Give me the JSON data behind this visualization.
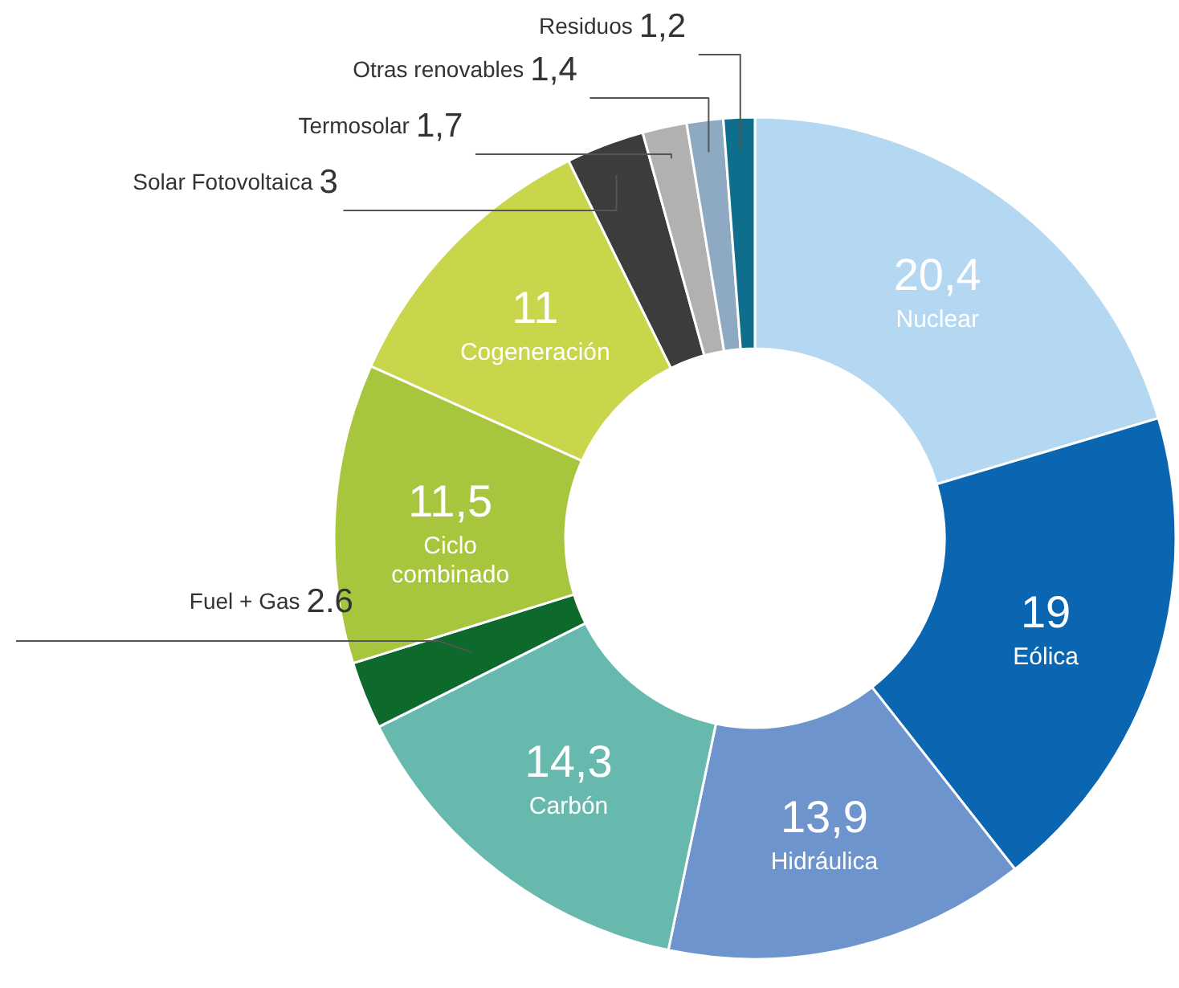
{
  "chart_data": {
    "type": "donut",
    "categories": [
      "Nuclear",
      "Eólica",
      "Hidráulica",
      "Carbón",
      "Fuel + Gas",
      "Ciclo combinado",
      "Cogeneración",
      "Solar Fotovoltaica",
      "Termosolar",
      "Otras renovables",
      "Residuos"
    ],
    "values": [
      20.4,
      19,
      13.9,
      14.3,
      2.6,
      11.5,
      11,
      3,
      1.7,
      1.4,
      1.2
    ],
    "value_labels": [
      "20,4",
      "19",
      "13,9",
      "14,3",
      "2.6",
      "11,5",
      "11",
      "3",
      "1,7",
      "1,4",
      "1,2"
    ],
    "colors": [
      "#b5d8f2",
      "#0a66b0",
      "#6d94cc",
      "#67b9ae",
      "#0d6a2c",
      "#a7c63d",
      "#c9d54b",
      "#3c3c3c",
      "#b1b1b1",
      "#8eaac2",
      "#0f6e8b"
    ]
  }
}
